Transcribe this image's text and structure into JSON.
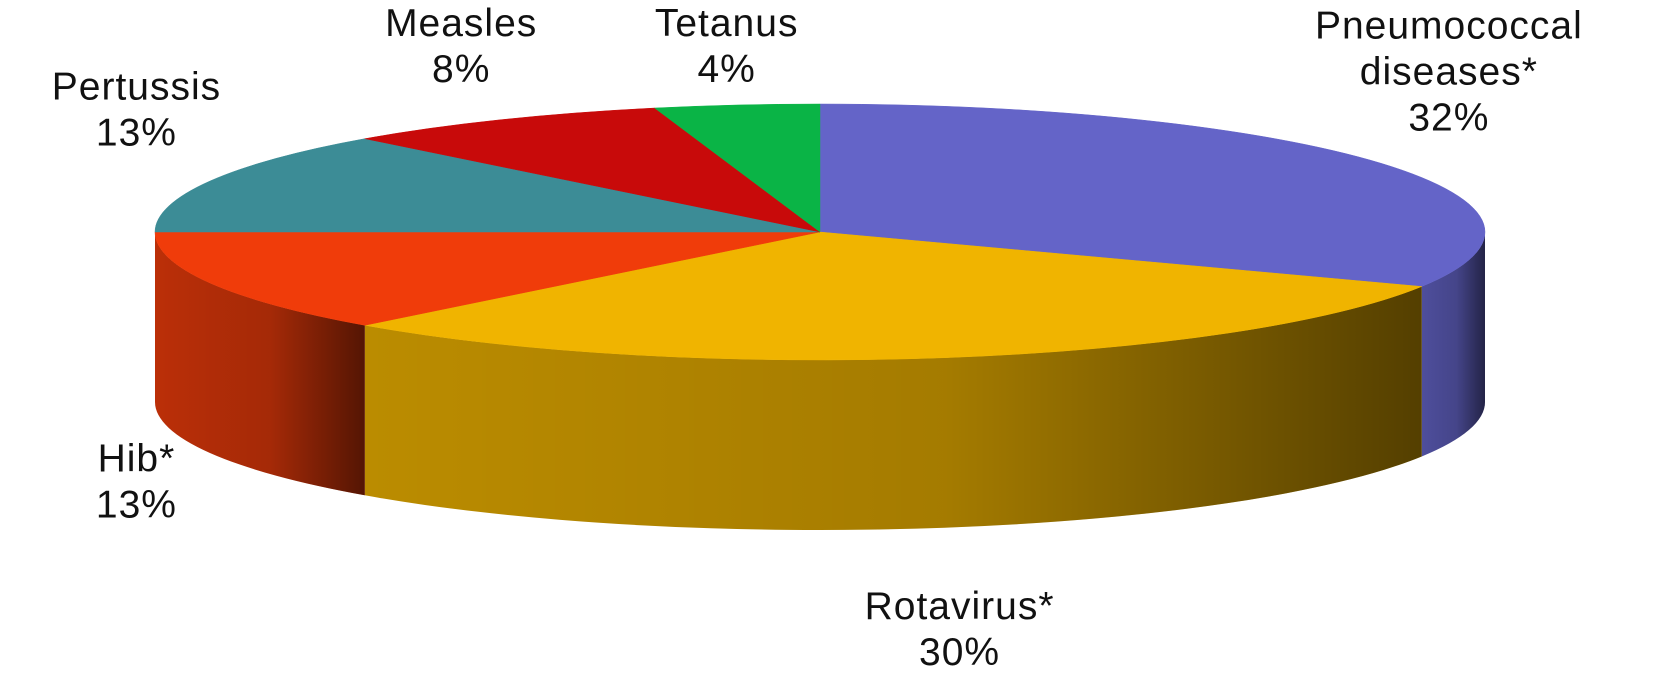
{
  "chart_data": {
    "type": "pie",
    "style": "3d",
    "slices": [
      {
        "label": "Pneumococcal diseases*",
        "label_lines": [
          "Pneumococcal",
          "diseases*"
        ],
        "value": 32,
        "value_label": "32%",
        "color": "#6464c8"
      },
      {
        "label": "Rotavirus*",
        "label_lines": [
          "Rotavirus*"
        ],
        "value": 30,
        "value_label": "30%",
        "color": "#f0b400"
      },
      {
        "label": "Hib*",
        "label_lines": [
          "Hib*"
        ],
        "value": 13,
        "value_label": "13%",
        "color": "#f03c0a"
      },
      {
        "label": "Pertussis",
        "label_lines": [
          "Pertussis"
        ],
        "value": 13,
        "value_label": "13%",
        "color": "#3c8c96"
      },
      {
        "label": "Measles",
        "label_lines": [
          "Measles"
        ],
        "value": 8,
        "value_label": "8%",
        "color": "#c80a0a"
      },
      {
        "label": "Tetanus",
        "label_lines": [
          "Tetanus"
        ],
        "value": 4,
        "value_label": "4%",
        "color": "#0ab446"
      }
    ]
  }
}
